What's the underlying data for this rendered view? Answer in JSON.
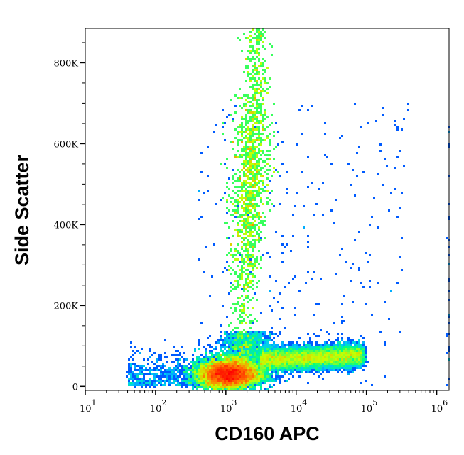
{
  "chart_data": {
    "type": "heatmap",
    "subtype": "flow-cytometry-density-dot-plot",
    "title": "",
    "xlabel": "CD160 APC",
    "ylabel": "Side Scatter",
    "x_scale": "log",
    "xlim": [
      10,
      1500000
    ],
    "ylim": [
      -10000,
      885000
    ],
    "x_ticks": [
      {
        "base": "10",
        "exp": "1"
      },
      {
        "base": "10",
        "exp": "2"
      },
      {
        "base": "10",
        "exp": "3"
      },
      {
        "base": "10",
        "exp": "4"
      },
      {
        "base": "10",
        "exp": "5"
      },
      {
        "base": "10",
        "exp": "6"
      }
    ],
    "y_ticks": [
      {
        "value": 0,
        "label": "0"
      },
      {
        "value": 200000,
        "label": "200K"
      },
      {
        "value": 400000,
        "label": "400K"
      },
      {
        "value": 600000,
        "label": "600K"
      },
      {
        "value": 800000,
        "label": "800K"
      }
    ],
    "grid": false,
    "colormap": [
      "#0000ff",
      "#00c8ff",
      "#00ff80",
      "#c8ff00",
      "#ff8000",
      "#ff0000"
    ],
    "populations": [
      {
        "x_center": 1000,
        "ssc_center": 30000,
        "density": "highest"
      },
      {
        "x_center": 2400,
        "ssc_center": 500000,
        "ssc_range": [
          60000,
          885000
        ],
        "density": "high"
      },
      {
        "x_range": [
          4000,
          100000
        ],
        "ssc_center": 70000,
        "density": "medium"
      },
      {
        "x_range": [
          20,
          1000000
        ],
        "ssc_range": [
          0,
          750000
        ],
        "density": "sparse"
      }
    ]
  }
}
